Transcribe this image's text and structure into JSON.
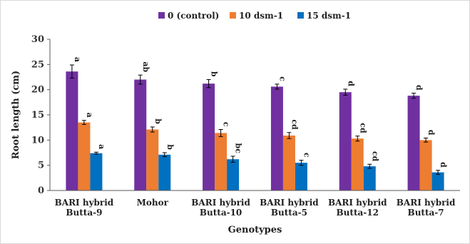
{
  "chart_data": {
    "type": "bar",
    "categories": [
      [
        "BARI hybrid",
        "Butta-9"
      ],
      [
        "Mohor"
      ],
      [
        "BARI hybrid",
        "Butta-10"
      ],
      [
        "BARI hybrid",
        "Butta-5"
      ],
      [
        "BARI hybrid",
        "Butta-12"
      ],
      [
        "BARI hybrid",
        "Butta-7"
      ]
    ],
    "series": [
      {
        "name": "0 (control)",
        "color": "#7030A0",
        "values": [
          23.6,
          22.0,
          21.2,
          20.6,
          19.5,
          18.8
        ],
        "errors": [
          1.3,
          0.9,
          0.8,
          0.5,
          0.6,
          0.5
        ],
        "letters": [
          "a",
          "ab",
          "b",
          "c",
          "d",
          "d"
        ]
      },
      {
        "name": "10 dsm-1",
        "color": "#ED7D31",
        "values": [
          13.5,
          12.1,
          11.4,
          10.9,
          10.3,
          10.0
        ],
        "errors": [
          0.4,
          0.5,
          0.7,
          0.6,
          0.5,
          0.4
        ],
        "letters": [
          "a",
          "b",
          "c",
          "cd",
          "cd",
          "d"
        ]
      },
      {
        "name": "15 dsm-1",
        "color": "#0070C0",
        "values": [
          7.4,
          7.1,
          6.2,
          5.5,
          4.8,
          3.6
        ],
        "errors": [
          0.2,
          0.4,
          0.6,
          0.5,
          0.4,
          0.4
        ],
        "letters": [
          "a",
          "b",
          "bc",
          "c",
          "cd",
          "d"
        ]
      }
    ],
    "xlabel": "Genotypes",
    "ylabel": "Root length (cm)",
    "ylim": [
      0,
      30
    ],
    "yticks": [
      0,
      5,
      10,
      15,
      20,
      25,
      30
    ],
    "grid": false,
    "legend": "top"
  }
}
